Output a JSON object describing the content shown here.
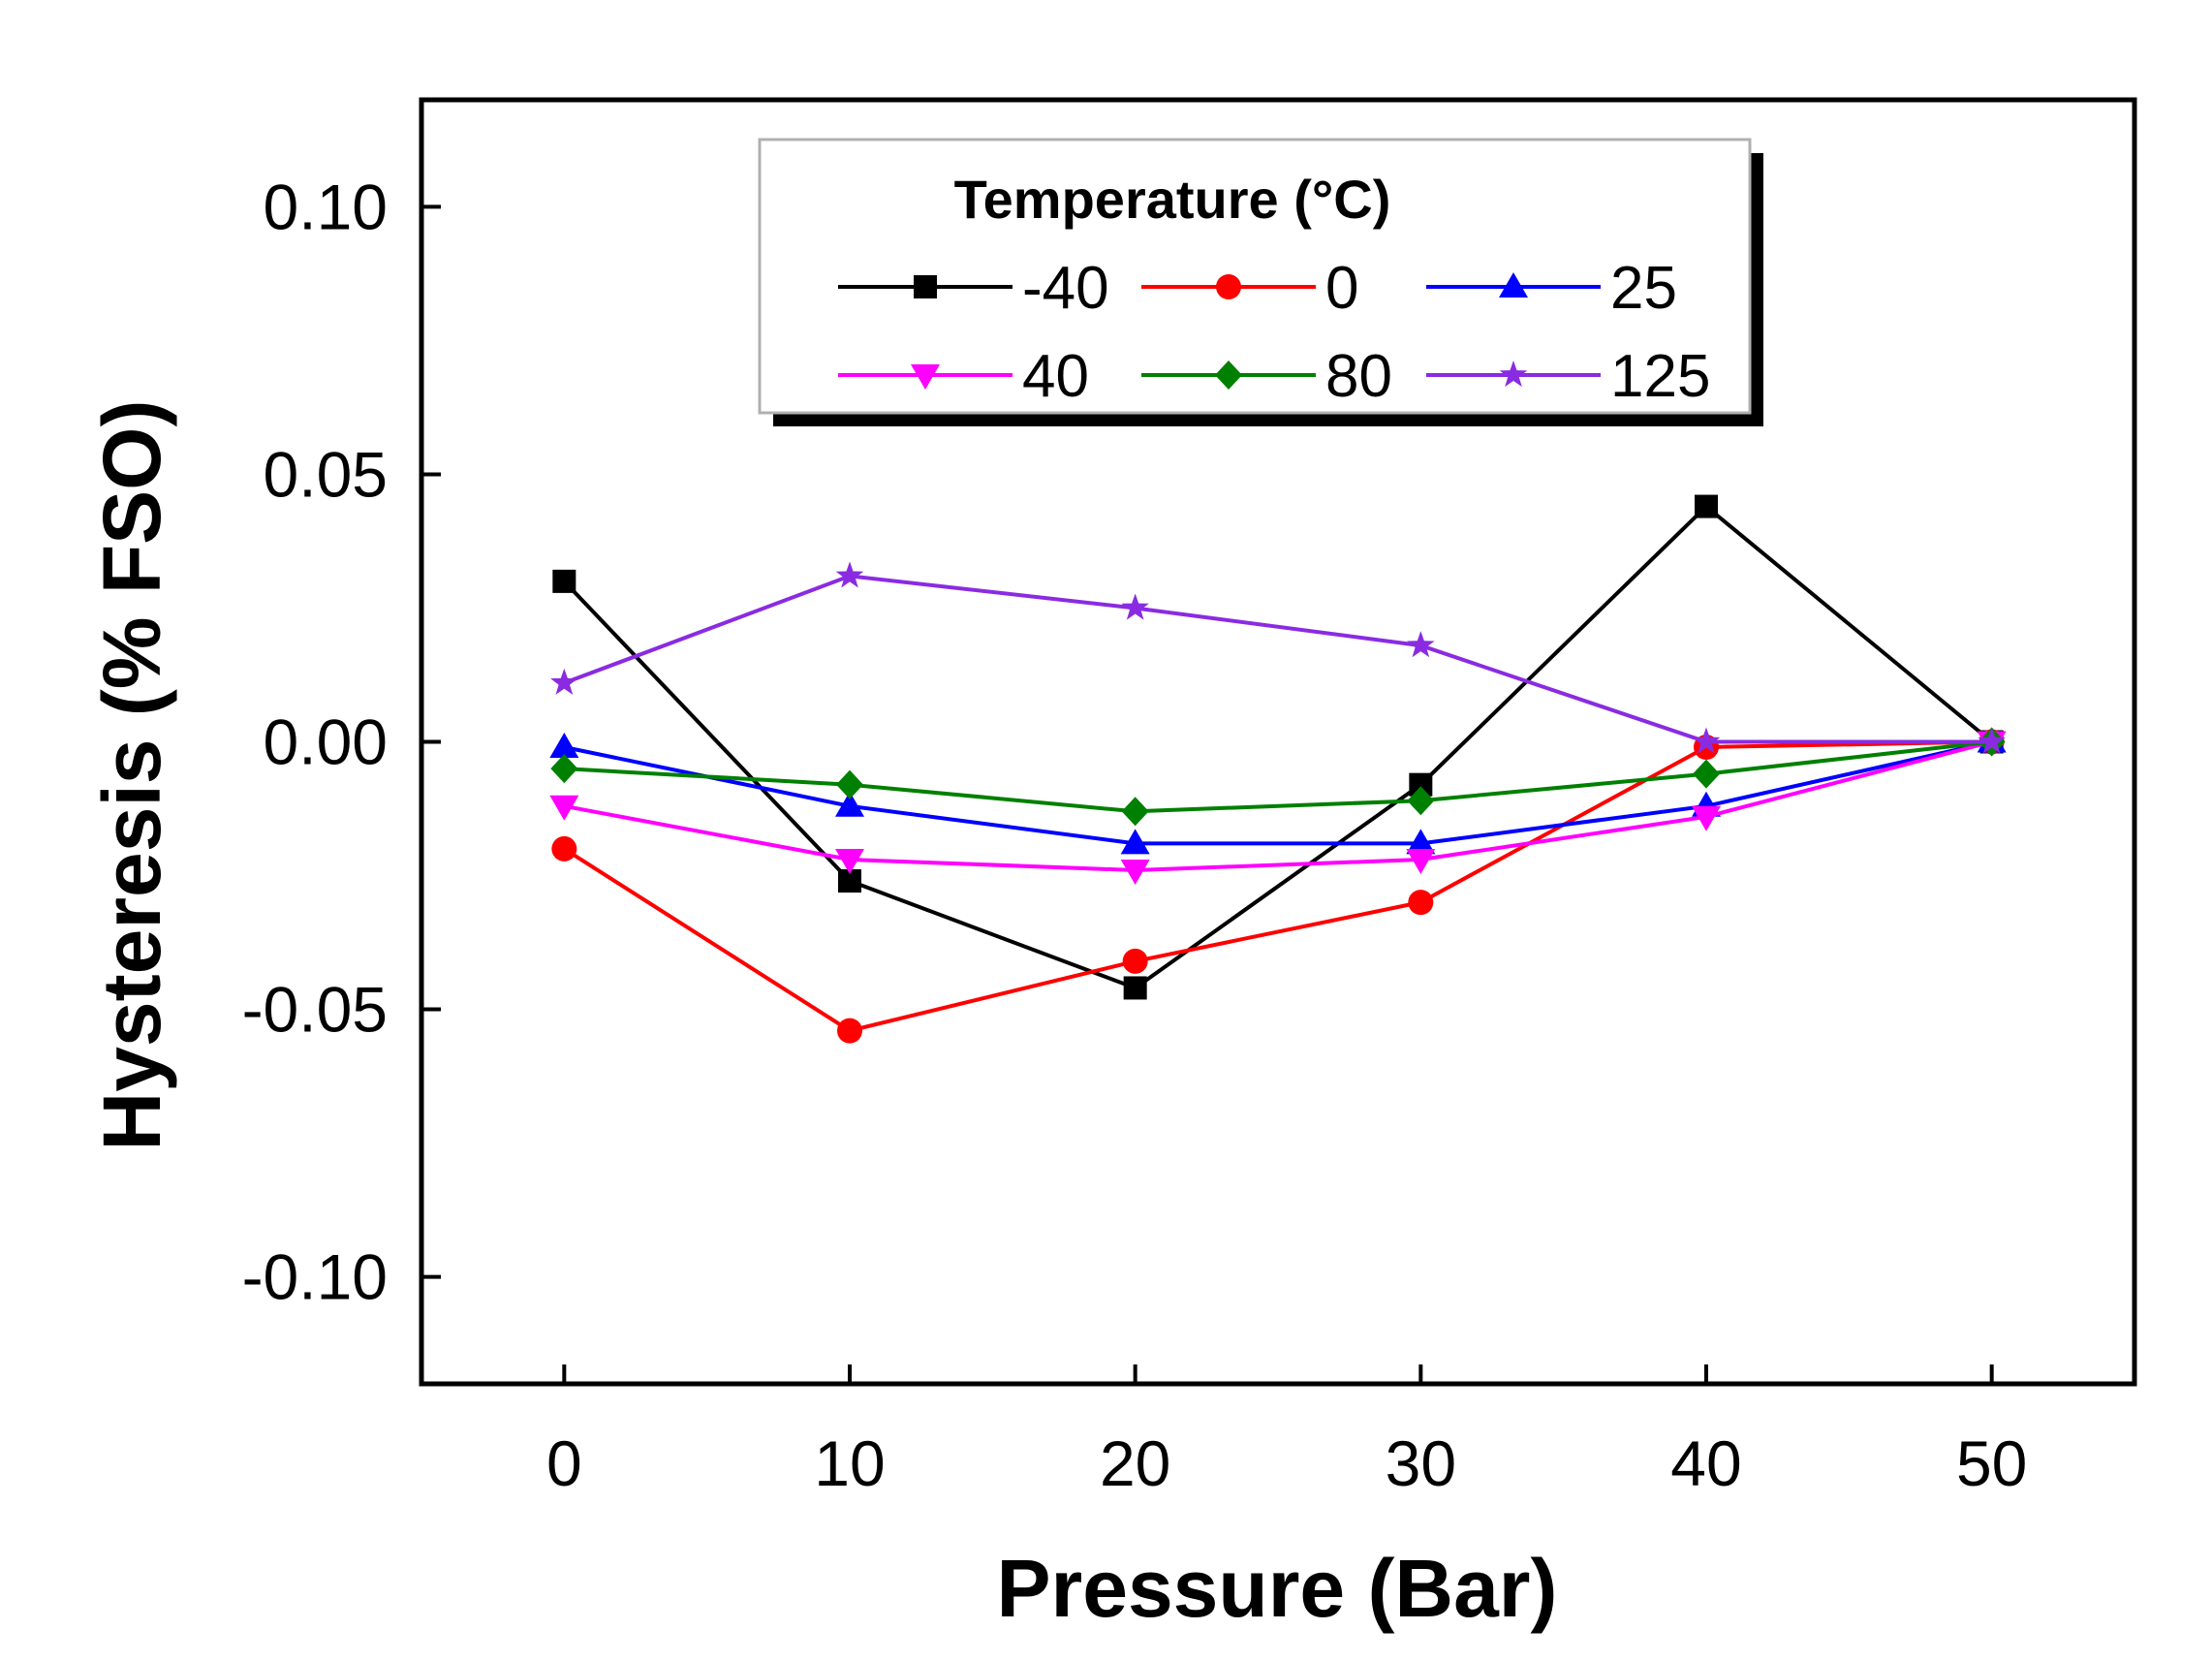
{
  "chart_data": {
    "type": "line",
    "title": "",
    "xlabel": "Pressure (Bar)",
    "ylabel": "Hysteresis (% FSO)",
    "xlim": [
      -5,
      55
    ],
    "ylim": [
      -0.12,
      0.12
    ],
    "x": [
      0,
      10,
      20,
      30,
      40,
      50
    ],
    "xticks": [
      "0",
      "10",
      "20",
      "30",
      "40",
      "50"
    ],
    "yticks": [
      {
        "value": 0.1,
        "label": "0.10"
      },
      {
        "value": 0.05,
        "label": "0.05"
      },
      {
        "value": 0.0,
        "label": "0.00"
      },
      {
        "value": -0.05,
        "label": "-0.05"
      },
      {
        "value": -0.1,
        "label": "-0.10"
      }
    ],
    "grid": false,
    "legend": {
      "title": "Temperature (°C)",
      "position": "top-center"
    },
    "series": [
      {
        "name": "-40",
        "color": "#000000",
        "marker": "square",
        "values": [
          0.03,
          -0.026,
          -0.046,
          -0.008,
          0.044,
          0.0
        ]
      },
      {
        "name": "0",
        "color": "#ff0000",
        "marker": "circle",
        "values": [
          -0.02,
          -0.054,
          -0.041,
          -0.03,
          -0.001,
          0.0
        ]
      },
      {
        "name": "25",
        "color": "#0000ff",
        "marker": "triangle-up",
        "values": [
          -0.001,
          -0.012,
          -0.019,
          -0.019,
          -0.012,
          0.0
        ]
      },
      {
        "name": "40",
        "color": "#ff00ff",
        "marker": "triangle-down",
        "values": [
          -0.012,
          -0.022,
          -0.024,
          -0.022,
          -0.014,
          0.0
        ]
      },
      {
        "name": "80",
        "color": "#008000",
        "marker": "diamond",
        "values": [
          -0.005,
          -0.008,
          -0.013,
          -0.011,
          -0.006,
          0.0
        ]
      },
      {
        "name": "125",
        "color": "#8a2be2",
        "marker": "star",
        "values": [
          0.011,
          0.031,
          0.025,
          0.018,
          0.0,
          0.0
        ]
      }
    ]
  }
}
